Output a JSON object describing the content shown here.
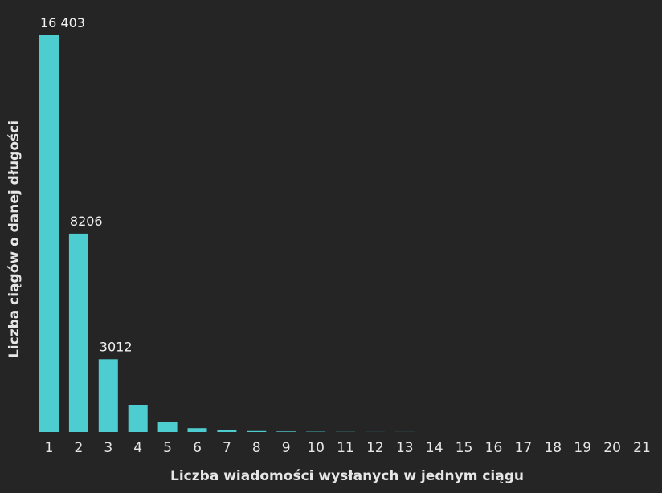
{
  "chart_data": {
    "type": "bar",
    "title": "",
    "xlabel": "Liczba wiadomości wysłanych w jednym ciągu",
    "ylabel": "Liczba ciągów o danej długości",
    "categories": [
      "1",
      "2",
      "3",
      "4",
      "5",
      "6",
      "7",
      "8",
      "9",
      "10",
      "11",
      "12",
      "13",
      "14",
      "15",
      "16",
      "17",
      "18",
      "19",
      "20",
      "21"
    ],
    "values": [
      16403,
      8206,
      3012,
      1100,
      430,
      160,
      75,
      40,
      22,
      12,
      7,
      4,
      2,
      1,
      1,
      0,
      0,
      0,
      0,
      0,
      0
    ],
    "data_labels": [
      "16 403",
      "8206",
      "3012",
      "",
      "",
      "",
      "",
      "",
      "",
      "",
      "",
      "",
      "",
      "",
      "",
      "",
      "",
      "",
      "",
      "",
      ""
    ],
    "ylim": [
      0,
      16403
    ],
    "grid": false,
    "legend": "none",
    "colors": {
      "background": "#252525",
      "bar": "#4ecdd0",
      "text": "#e6e6e6"
    }
  }
}
